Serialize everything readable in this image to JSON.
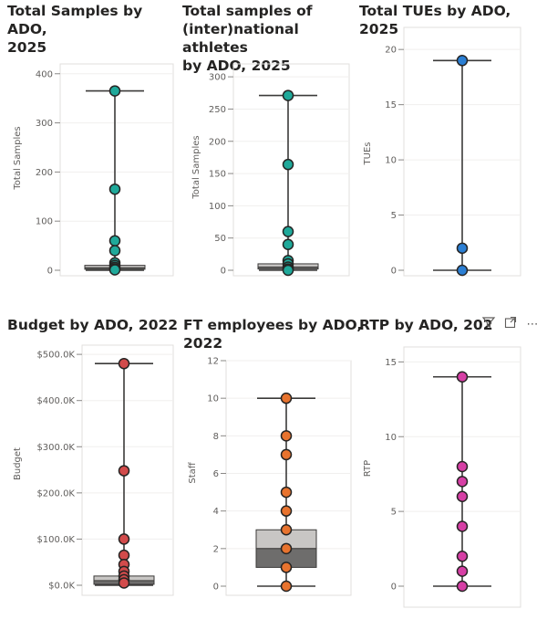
{
  "chart_data": [
    {
      "type": "box-and-dot",
      "title": [
        "Total Samples by ADO,",
        "2025"
      ],
      "ylabel": "Total Samples",
      "ylim": [
        0,
        420
      ],
      "yticks": [
        0,
        100,
        200,
        300,
        400
      ],
      "tick_labels": [
        "0",
        "100",
        "200",
        "300",
        "400"
      ],
      "dot_color": "#1fa99a",
      "whisker": [
        0,
        365
      ],
      "box": {
        "q1": 2,
        "median": 5,
        "q3": 10
      },
      "values": [
        365,
        165,
        60,
        40,
        15,
        10,
        6,
        3,
        1
      ]
    },
    {
      "type": "box-and-dot",
      "title": [
        "Total samples of",
        "(inter)national athletes",
        "by ADO, 2025"
      ],
      "ylabel": "Total Samples",
      "ylim": [
        0,
        320
      ],
      "yticks": [
        0,
        50,
        100,
        150,
        200,
        250,
        300
      ],
      "tick_labels": [
        "0",
        "50",
        "100",
        "150",
        "200",
        "250",
        "300"
      ],
      "dot_color": "#1fa99a",
      "whisker": [
        0,
        271
      ],
      "box": {
        "q1": 2,
        "median": 5,
        "q3": 10
      },
      "values": [
        271,
        164,
        60,
        40,
        15,
        10,
        5,
        2,
        0
      ]
    },
    {
      "type": "box-and-dot",
      "title": [
        "Total TUEs by ADO, 2025"
      ],
      "ylabel": "TUEs",
      "ylim": [
        0,
        22
      ],
      "yticks": [
        0,
        5,
        10,
        15,
        20
      ],
      "tick_labels": [
        "0",
        "5",
        "10",
        "15",
        "20"
      ],
      "dot_color": "#2b7fd4",
      "whisker": [
        0,
        19
      ],
      "box": {
        "q1": 0,
        "median": 0,
        "q3": 0
      },
      "values": [
        19,
        2,
        0
      ]
    },
    {
      "type": "box-and-dot",
      "title": [
        "Budget by ADO, 2022"
      ],
      "ylabel": "Budget",
      "ylim": [
        0,
        520
      ],
      "yticks": [
        0,
        100,
        200,
        300,
        400,
        500
      ],
      "tick_labels": [
        "$0.0K",
        "$100.0K",
        "$200.0K",
        "$300.0K",
        "$400.0K",
        "$500.0K"
      ],
      "dot_color": "#d24b4b",
      "whisker": [
        0,
        480
      ],
      "box": {
        "q1": 2,
        "median": 10,
        "q3": 20
      },
      "values": [
        480,
        248,
        100,
        65,
        45,
        30,
        20,
        12,
        5
      ]
    },
    {
      "type": "box-and-dot",
      "title": [
        "FT employees by ADO,",
        "2022"
      ],
      "ylabel": "Staff",
      "ylim": [
        0,
        12
      ],
      "yticks": [
        0,
        2,
        4,
        6,
        8,
        10,
        12
      ],
      "tick_labels": [
        "0",
        "2",
        "4",
        "6",
        "8",
        "10",
        "12"
      ],
      "dot_color": "#e8732e",
      "whisker": [
        0,
        10
      ],
      "box": {
        "q1": 1,
        "median": 2,
        "q3": 3
      },
      "values": [
        10,
        8,
        7,
        5,
        4,
        3,
        2,
        1,
        0
      ]
    },
    {
      "type": "box-and-dot",
      "title": [
        "RTP by ADO, 202"
      ],
      "ylabel": "RTP",
      "ylim": [
        0,
        16
      ],
      "yticks": [
        0,
        5,
        10,
        15
      ],
      "tick_labels": [
        "0",
        "5",
        "10",
        "15"
      ],
      "dot_color": "#d63fa5",
      "whisker": [
        0,
        14
      ],
      "box": {
        "q1": 0,
        "median": 0,
        "q3": 0
      },
      "values": [
        14,
        8,
        7,
        6,
        4,
        2,
        1,
        0
      ]
    }
  ],
  "toolbar": {
    "filter_icon": "filter-icon",
    "focus_icon": "focus-mode-icon",
    "more_icon": "more-options-icon",
    "more_label": "⋯"
  }
}
